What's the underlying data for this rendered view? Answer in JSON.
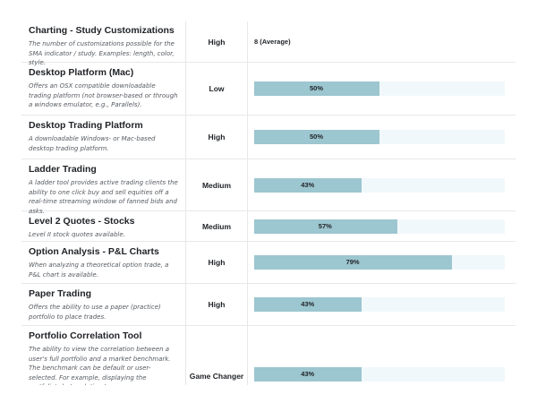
{
  "rows": [
    {
      "name": "Charting - Study Customizations",
      "description": "The number of customizations possible for the SMA indicator / study. Examples: length, color, style.",
      "importance": "High",
      "score_text": "8 (Average)"
    },
    {
      "name": "Desktop Platform (Mac)",
      "description": "Offers an OSX compatible downloadable trading platform (not browser-based or through a windows emulator, e.g., Parallels).",
      "importance": "Low",
      "score_pct": 50,
      "score_label": "50%"
    },
    {
      "name": "Desktop Trading Platform",
      "description": "A downloadable Windows- or Mac-based desktop trading platform.",
      "importance": "High",
      "score_pct": 50,
      "score_label": "50%"
    },
    {
      "name": "Ladder Trading",
      "description": "A ladder tool provides active trading clients the ability to one click buy and sell equities off a real-time streaming window of fanned bids and asks.",
      "importance": "Medium",
      "score_pct": 43,
      "score_label": "43%"
    },
    {
      "name": "Level 2 Quotes - Stocks",
      "description": "Level II stock quotes available.",
      "importance": "Medium",
      "score_pct": 57,
      "score_label": "57%"
    },
    {
      "name": "Option Analysis - P&L Charts",
      "description": "When analyzing a theoretical option trade, a P&L chart is available.",
      "importance": "High",
      "score_pct": 79,
      "score_label": "79%"
    },
    {
      "name": "Paper Trading",
      "description": "Offers the ability to use a paper (practice) portfolio to place trades.",
      "importance": "High",
      "score_pct": 43,
      "score_label": "43%"
    },
    {
      "name": "Portfolio Correlation Tool",
      "description": "The ability to view the correlation between a user's full portfolio and a market benchmark. The benchmark can be default or user-selected. For example, displaying the portfolio's beta relative to",
      "importance": "Game Changer",
      "score_pct": 43,
      "score_label": "43%"
    }
  ],
  "colors": {
    "bar_fill": "#9cc6d0",
    "bar_track": "#f1f8fb",
    "divider": "#e6e8ea"
  }
}
